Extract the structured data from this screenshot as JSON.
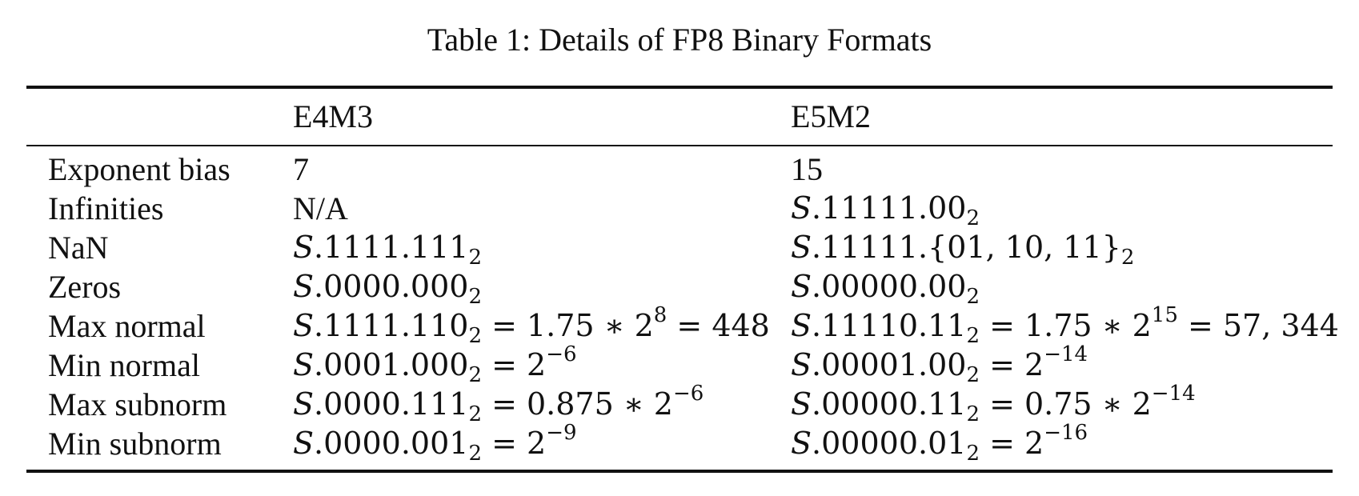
{
  "caption": "Table 1: Details of FP8 Binary Formats",
  "columns": [
    "",
    "E4M3",
    "E5M2"
  ],
  "rows": [
    {
      "label": "Exponent bias",
      "e4m3": {
        "mantissa": "7",
        "base": "",
        "eq1": "",
        "eq2": "",
        "exp": "",
        "tail": ""
      },
      "e5m2": {
        "mantissa": "15",
        "base": "",
        "eq1": "",
        "eq2": "",
        "exp": "",
        "tail": ""
      }
    },
    {
      "label": "Infinities",
      "e4m3": {
        "mantissa": "N/A",
        "base": "",
        "eq1": "",
        "eq2": "",
        "exp": "",
        "tail": ""
      },
      "e5m2": {
        "sign": "S",
        "mantissa": ".11111.00",
        "base": "2",
        "eq1": "",
        "eq2": "",
        "exp": "",
        "tail": ""
      }
    },
    {
      "label": "NaN",
      "e4m3": {
        "sign": "S",
        "mantissa": ".1111.111",
        "base": "2",
        "eq1": "",
        "eq2": "",
        "exp": "",
        "tail": ""
      },
      "e5m2": {
        "sign": "S",
        "mantissa": ".11111.{01, 10, 11}",
        "base": "2",
        "eq1": "",
        "eq2": "",
        "exp": "",
        "tail": ""
      }
    },
    {
      "label": "Zeros",
      "e4m3": {
        "sign": "S",
        "mantissa": ".0000.000",
        "base": "2",
        "eq1": "",
        "eq2": "",
        "exp": "",
        "tail": ""
      },
      "e5m2": {
        "sign": "S",
        "mantissa": ".00000.00",
        "base": "2",
        "eq1": "",
        "eq2": "",
        "exp": "",
        "tail": ""
      }
    },
    {
      "label": "Max normal",
      "e4m3": {
        "sign": "S",
        "mantissa": ".1111.110",
        "base": "2",
        "eq1": " = ",
        "eq2": "1.75 ∗ 2",
        "exp": "8",
        "tail": " = 448"
      },
      "e5m2": {
        "sign": "S",
        "mantissa": ".11110.11",
        "base": "2",
        "eq1": " = ",
        "eq2": "1.75 ∗ 2",
        "exp": "15",
        "tail": " = 57, 344"
      }
    },
    {
      "label": "Min normal",
      "e4m3": {
        "sign": "S",
        "mantissa": ".0001.000",
        "base": "2",
        "eq1": " = ",
        "eq2": "2",
        "exp": "−6",
        "tail": ""
      },
      "e5m2": {
        "sign": "S",
        "mantissa": ".00001.00",
        "base": "2",
        "eq1": " = ",
        "eq2": "2",
        "exp": "−14",
        "tail": ""
      }
    },
    {
      "label": "Max subnorm",
      "e4m3": {
        "sign": "S",
        "mantissa": ".0000.111",
        "base": "2",
        "eq1": " = ",
        "eq2": "0.875 ∗ 2",
        "exp": "−6",
        "tail": ""
      },
      "e5m2": {
        "sign": "S",
        "mantissa": ".00000.11",
        "base": "2",
        "eq1": " = ",
        "eq2": "0.75 ∗ 2",
        "exp": "−14",
        "tail": ""
      }
    },
    {
      "label": "Min subnorm",
      "e4m3": {
        "sign": "S",
        "mantissa": ".0000.001",
        "base": "2",
        "eq1": " = ",
        "eq2": "2",
        "exp": "−9",
        "tail": ""
      },
      "e5m2": {
        "sign": "S",
        "mantissa": ".00000.01",
        "base": "2",
        "eq1": " = ",
        "eq2": "2",
        "exp": "−16",
        "tail": ""
      }
    }
  ]
}
